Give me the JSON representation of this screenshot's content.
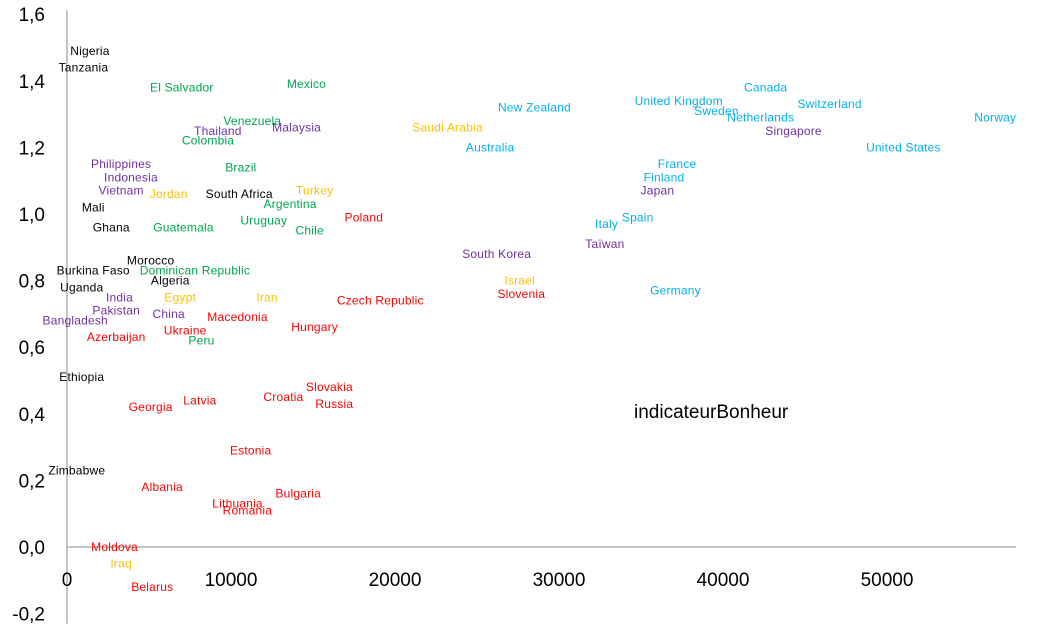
{
  "chart_data": {
    "type": "scatter",
    "title": "",
    "xlabel": "",
    "ylabel": "",
    "xlim": [
      0,
      58000
    ],
    "ylim": [
      -0.2,
      1.6
    ],
    "xticks": [
      "0",
      "10000",
      "20000",
      "30000",
      "40000",
      "50000"
    ],
    "xtick_values": [
      0,
      10000,
      20000,
      30000,
      40000,
      50000
    ],
    "yticks": [
      "-0,2",
      "0,0",
      "0,2",
      "0,4",
      "0,6",
      "0,8",
      "1,0",
      "1,2",
      "1,4",
      "1,6"
    ],
    "ytick_values": [
      -0.2,
      0.0,
      0.2,
      0.4,
      0.6,
      0.8,
      1.0,
      1.2,
      1.4,
      1.6
    ],
    "grid": false,
    "annotation": "indicateurBonheur",
    "colors": {
      "black": "#000000",
      "green": "#00A550",
      "purple": "#7030A0",
      "orange": "#FFC000",
      "red": "#FF0000",
      "cyan": "#00B0F0"
    },
    "points": [
      {
        "label": "Nigeria",
        "x": 1400,
        "y": 1.49,
        "color": "black"
      },
      {
        "label": "Tanzania",
        "x": 1000,
        "y": 1.44,
        "color": "black"
      },
      {
        "label": "El Salvador",
        "x": 7000,
        "y": 1.38,
        "color": "green"
      },
      {
        "label": "Mexico",
        "x": 14600,
        "y": 1.39,
        "color": "green"
      },
      {
        "label": "Venezuela",
        "x": 11300,
        "y": 1.28,
        "color": "green"
      },
      {
        "label": "Thailand",
        "x": 9200,
        "y": 1.25,
        "color": "purple"
      },
      {
        "label": "Malaysia",
        "x": 14000,
        "y": 1.26,
        "color": "purple"
      },
      {
        "label": "Colombia",
        "x": 8600,
        "y": 1.22,
        "color": "green"
      },
      {
        "label": "Philippines",
        "x": 3300,
        "y": 1.15,
        "color": "purple"
      },
      {
        "label": "Brazil",
        "x": 10600,
        "y": 1.14,
        "color": "green"
      },
      {
        "label": "Indonesia",
        "x": 3900,
        "y": 1.11,
        "color": "purple"
      },
      {
        "label": "Vietnam",
        "x": 3300,
        "y": 1.07,
        "color": "purple"
      },
      {
        "label": "Jordan",
        "x": 6200,
        "y": 1.06,
        "color": "orange"
      },
      {
        "label": "South Africa",
        "x": 10500,
        "y": 1.06,
        "color": "black"
      },
      {
        "label": "Turkey",
        "x": 15100,
        "y": 1.07,
        "color": "orange"
      },
      {
        "label": "Mali",
        "x": 1600,
        "y": 1.02,
        "color": "black"
      },
      {
        "label": "Argentina",
        "x": 13600,
        "y": 1.03,
        "color": "green"
      },
      {
        "label": "Poland",
        "x": 18100,
        "y": 0.99,
        "color": "red"
      },
      {
        "label": "Ghana",
        "x": 2700,
        "y": 0.96,
        "color": "black"
      },
      {
        "label": "Guatemala",
        "x": 7100,
        "y": 0.96,
        "color": "green"
      },
      {
        "label": "Uruguay",
        "x": 12000,
        "y": 0.98,
        "color": "green"
      },
      {
        "label": "Chile",
        "x": 14800,
        "y": 0.95,
        "color": "green"
      },
      {
        "label": "South Korea",
        "x": 26200,
        "y": 0.88,
        "color": "purple"
      },
      {
        "label": "Taïwan",
        "x": 32800,
        "y": 0.91,
        "color": "purple"
      },
      {
        "label": "Italy",
        "x": 32900,
        "y": 0.97,
        "color": "cyan"
      },
      {
        "label": "Spain",
        "x": 34800,
        "y": 0.99,
        "color": "cyan"
      },
      {
        "label": "Morocco",
        "x": 5100,
        "y": 0.86,
        "color": "black"
      },
      {
        "label": "Burkina Faso",
        "x": 1600,
        "y": 0.83,
        "color": "black"
      },
      {
        "label": "Dominican Republic",
        "x": 7800,
        "y": 0.83,
        "color": "green"
      },
      {
        "label": "Algeria",
        "x": 6300,
        "y": 0.8,
        "color": "black"
      },
      {
        "label": "Uganda",
        "x": 900,
        "y": 0.78,
        "color": "black"
      },
      {
        "label": "Israel",
        "x": 27600,
        "y": 0.8,
        "color": "orange"
      },
      {
        "label": "Slovenia",
        "x": 27700,
        "y": 0.76,
        "color": "red"
      },
      {
        "label": "Germany",
        "x": 37100,
        "y": 0.77,
        "color": "cyan"
      },
      {
        "label": "India",
        "x": 3200,
        "y": 0.75,
        "color": "purple"
      },
      {
        "label": "Egypt",
        "x": 6900,
        "y": 0.75,
        "color": "orange"
      },
      {
        "label": "Iran",
        "x": 12200,
        "y": 0.75,
        "color": "orange"
      },
      {
        "label": "Czech Republic",
        "x": 19100,
        "y": 0.74,
        "color": "red"
      },
      {
        "label": "Pakistan",
        "x": 3000,
        "y": 0.71,
        "color": "purple"
      },
      {
        "label": "China",
        "x": 6200,
        "y": 0.7,
        "color": "purple"
      },
      {
        "label": "Macedonia",
        "x": 10400,
        "y": 0.69,
        "color": "red"
      },
      {
        "label": "Bangladesh",
        "x": 500,
        "y": 0.68,
        "color": "purple"
      },
      {
        "label": "Hungary",
        "x": 15100,
        "y": 0.66,
        "color": "red"
      },
      {
        "label": "Ukraine",
        "x": 7200,
        "y": 0.65,
        "color": "red"
      },
      {
        "label": "Azerbaijan",
        "x": 3000,
        "y": 0.63,
        "color": "red"
      },
      {
        "label": "Peru",
        "x": 8200,
        "y": 0.62,
        "color": "green"
      },
      {
        "label": "Ethiopia",
        "x": 900,
        "y": 0.51,
        "color": "black"
      },
      {
        "label": "Slovakia",
        "x": 16000,
        "y": 0.48,
        "color": "red"
      },
      {
        "label": "Croatia",
        "x": 13200,
        "y": 0.45,
        "color": "red"
      },
      {
        "label": "Latvia",
        "x": 8100,
        "y": 0.44,
        "color": "red"
      },
      {
        "label": "Russia",
        "x": 16300,
        "y": 0.43,
        "color": "red"
      },
      {
        "label": "Georgia",
        "x": 5100,
        "y": 0.42,
        "color": "red"
      },
      {
        "label": "Estonia",
        "x": 11200,
        "y": 0.29,
        "color": "red"
      },
      {
        "label": "Zimbabwe",
        "x": 600,
        "y": 0.23,
        "color": "black"
      },
      {
        "label": "Albania",
        "x": 5800,
        "y": 0.18,
        "color": "red"
      },
      {
        "label": "Bulgaria",
        "x": 14100,
        "y": 0.16,
        "color": "red"
      },
      {
        "label": "Lithuania",
        "x": 10400,
        "y": 0.13,
        "color": "red"
      },
      {
        "label": "Romania",
        "x": 11000,
        "y": 0.11,
        "color": "red"
      },
      {
        "label": "Moldova",
        "x": 2900,
        "y": 0.0,
        "color": "red"
      },
      {
        "label": "Iraq",
        "x": 3300,
        "y": -0.05,
        "color": "orange"
      },
      {
        "label": "Belarus",
        "x": 5200,
        "y": -0.12,
        "color": "red"
      },
      {
        "label": "Saudi Arabia",
        "x": 23200,
        "y": 1.26,
        "color": "orange"
      },
      {
        "label": "New Zealand",
        "x": 28500,
        "y": 1.32,
        "color": "cyan"
      },
      {
        "label": "Australia",
        "x": 25800,
        "y": 1.2,
        "color": "cyan"
      },
      {
        "label": "United Kingdom",
        "x": 37300,
        "y": 1.34,
        "color": "cyan"
      },
      {
        "label": "Canada",
        "x": 42600,
        "y": 1.38,
        "color": "cyan"
      },
      {
        "label": "Switzerland",
        "x": 46500,
        "y": 1.33,
        "color": "cyan"
      },
      {
        "label": "Sweden",
        "x": 39600,
        "y": 1.31,
        "color": "cyan"
      },
      {
        "label": "Netherlands",
        "x": 42300,
        "y": 1.29,
        "color": "cyan"
      },
      {
        "label": "Singapore",
        "x": 44300,
        "y": 1.25,
        "color": "purple"
      },
      {
        "label": "Norway",
        "x": 56600,
        "y": 1.29,
        "color": "cyan"
      },
      {
        "label": "United States",
        "x": 51000,
        "y": 1.2,
        "color": "cyan"
      },
      {
        "label": "France",
        "x": 37200,
        "y": 1.15,
        "color": "cyan"
      },
      {
        "label": "Finland",
        "x": 36400,
        "y": 1.11,
        "color": "cyan"
      },
      {
        "label": "Japan",
        "x": 36000,
        "y": 1.07,
        "color": "purple"
      }
    ]
  }
}
